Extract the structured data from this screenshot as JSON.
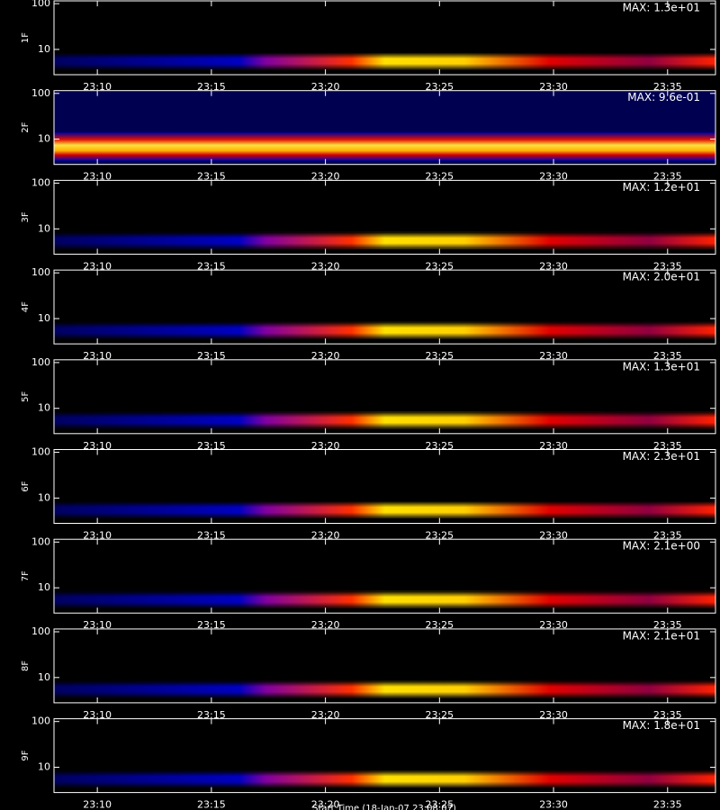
{
  "chart_data": [
    {
      "type": "spectrogram",
      "ylabel": "1F",
      "annotation": "MAX: 1.3e+01",
      "yscale": "log",
      "ylim": [
        2.8,
        115
      ],
      "yticks": [
        10,
        100
      ],
      "xlim": [
        1388.1,
        1417.1
      ],
      "xticks": [
        {
          "value": 1390,
          "label": "23:10"
        },
        {
          "value": 1395,
          "label": "23:15"
        },
        {
          "value": 1400,
          "label": "23:20"
        },
        {
          "value": 1405,
          "label": "23:25"
        },
        {
          "value": 1410,
          "label": "23:30"
        },
        {
          "value": 1415,
          "label": "23:35"
        }
      ]
    },
    {
      "type": "spectrogram",
      "ylabel": "2F",
      "annotation": "MAX: 9.6e-01",
      "yscale": "log",
      "ylim": [
        2.8,
        115
      ],
      "yticks": [
        10,
        100
      ],
      "xlim": [
        1388.1,
        1417.1
      ],
      "xticks": [
        {
          "value": 1390,
          "label": "23:10"
        },
        {
          "value": 1395,
          "label": "23:15"
        },
        {
          "value": 1400,
          "label": "23:20"
        },
        {
          "value": 1405,
          "label": "23:25"
        },
        {
          "value": 1410,
          "label": "23:30"
        },
        {
          "value": 1415,
          "label": "23:35"
        }
      ]
    },
    {
      "type": "spectrogram",
      "ylabel": "3F",
      "annotation": "MAX: 1.2e+01",
      "yscale": "log",
      "ylim": [
        2.8,
        115
      ],
      "yticks": [
        10,
        100
      ],
      "xlim": [
        1388.1,
        1417.1
      ],
      "xticks": [
        {
          "value": 1390,
          "label": "23:10"
        },
        {
          "value": 1395,
          "label": "23:15"
        },
        {
          "value": 1400,
          "label": "23:20"
        },
        {
          "value": 1405,
          "label": "23:25"
        },
        {
          "value": 1410,
          "label": "23:30"
        },
        {
          "value": 1415,
          "label": "23:35"
        }
      ]
    },
    {
      "type": "spectrogram",
      "ylabel": "4F",
      "annotation": "MAX: 2.0e+01",
      "yscale": "log",
      "ylim": [
        2.8,
        115
      ],
      "yticks": [
        10,
        100
      ],
      "xlim": [
        1388.1,
        1417.1
      ],
      "xticks": [
        {
          "value": 1390,
          "label": "23:10"
        },
        {
          "value": 1395,
          "label": "23:15"
        },
        {
          "value": 1400,
          "label": "23:20"
        },
        {
          "value": 1405,
          "label": "23:25"
        },
        {
          "value": 1410,
          "label": "23:30"
        },
        {
          "value": 1415,
          "label": "23:35"
        }
      ]
    },
    {
      "type": "spectrogram",
      "ylabel": "5F",
      "annotation": "MAX: 1.3e+01",
      "yscale": "log",
      "ylim": [
        2.8,
        115
      ],
      "yticks": [
        10,
        100
      ],
      "xlim": [
        1388.1,
        1417.1
      ],
      "xticks": [
        {
          "value": 1390,
          "label": "23:10"
        },
        {
          "value": 1395,
          "label": "23:15"
        },
        {
          "value": 1400,
          "label": "23:20"
        },
        {
          "value": 1405,
          "label": "23:25"
        },
        {
          "value": 1410,
          "label": "23:30"
        },
        {
          "value": 1415,
          "label": "23:35"
        }
      ]
    },
    {
      "type": "spectrogram",
      "ylabel": "6F",
      "annotation": "MAX: 2.3e+01",
      "yscale": "log",
      "ylim": [
        2.8,
        115
      ],
      "yticks": [
        10,
        100
      ],
      "xlim": [
        1388.1,
        1417.1
      ],
      "xticks": [
        {
          "value": 1390,
          "label": "23:10"
        },
        {
          "value": 1395,
          "label": "23:15"
        },
        {
          "value": 1400,
          "label": "23:20"
        },
        {
          "value": 1405,
          "label": "23:25"
        },
        {
          "value": 1410,
          "label": "23:30"
        },
        {
          "value": 1415,
          "label": "23:35"
        }
      ]
    },
    {
      "type": "spectrogram",
      "ylabel": "7F",
      "annotation": "MAX: 2.1e+00",
      "yscale": "log",
      "ylim": [
        2.8,
        115
      ],
      "yticks": [
        10,
        100
      ],
      "xlim": [
        1388.1,
        1417.1
      ],
      "xticks": [
        {
          "value": 1390,
          "label": "23:10"
        },
        {
          "value": 1395,
          "label": "23:15"
        },
        {
          "value": 1400,
          "label": "23:20"
        },
        {
          "value": 1405,
          "label": "23:25"
        },
        {
          "value": 1410,
          "label": "23:30"
        },
        {
          "value": 1415,
          "label": "23:35"
        }
      ]
    },
    {
      "type": "spectrogram",
      "ylabel": "8F",
      "annotation": "MAX: 2.1e+01",
      "yscale": "log",
      "ylim": [
        2.8,
        115
      ],
      "yticks": [
        10,
        100
      ],
      "xlim": [
        1388.1,
        1417.1
      ],
      "xticks": [
        {
          "value": 1390,
          "label": "23:10"
        },
        {
          "value": 1395,
          "label": "23:15"
        },
        {
          "value": 1400,
          "label": "23:20"
        },
        {
          "value": 1405,
          "label": "23:25"
        },
        {
          "value": 1410,
          "label": "23:30"
        },
        {
          "value": 1415,
          "label": "23:35"
        }
      ]
    },
    {
      "type": "spectrogram",
      "ylabel": "9F",
      "annotation": "MAX: 1.8e+01",
      "yscale": "log",
      "ylim": [
        2.8,
        115
      ],
      "yticks": [
        10,
        100
      ],
      "xlim": [
        1388.1,
        1417.1
      ],
      "xticks": [
        {
          "value": 1390,
          "label": "23:10"
        },
        {
          "value": 1395,
          "label": "23:15"
        },
        {
          "value": 1400,
          "label": "23:20"
        },
        {
          "value": 1405,
          "label": "23:25"
        },
        {
          "value": 1410,
          "label": "23:30"
        },
        {
          "value": 1415,
          "label": "23:35"
        }
      ],
      "xlabel": "Start Time (18-Jan-07 23:08:07)"
    }
  ]
}
